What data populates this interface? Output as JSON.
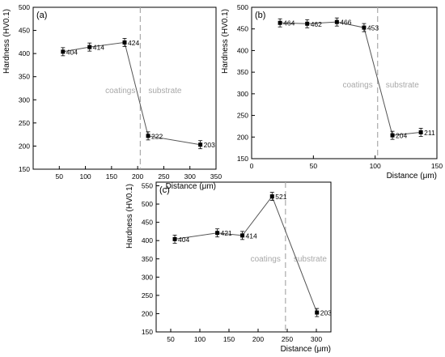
{
  "chart_data": [
    {
      "type": "line",
      "panel_label": "(a)",
      "xlabel": "Distance (μm)",
      "ylabel": "Hardness (HV0.1)",
      "xlim": [
        0,
        350
      ],
      "ylim": [
        150,
        500
      ],
      "xticks": [
        50,
        100,
        150,
        200,
        250,
        300,
        350
      ],
      "yticks": [
        150,
        200,
        250,
        300,
        350,
        400,
        450,
        500
      ],
      "boundary_x": 205,
      "region_left_label": "coatings",
      "region_right_label": "substrate",
      "series": [
        {
          "x": [
            57,
            108,
            175,
            220,
            320
          ],
          "y": [
            404,
            414,
            424,
            222,
            203
          ],
          "labels": [
            "404",
            "414",
            "424",
            "222",
            "203"
          ]
        }
      ]
    },
    {
      "type": "line",
      "panel_label": "(b)",
      "xlabel": "Distance (μm)",
      "ylabel": "Hardness (HV0.1)",
      "xlim": [
        0,
        150
      ],
      "ylim": [
        150,
        500
      ],
      "xticks": [
        0,
        50,
        100,
        150
      ],
      "yticks": [
        150,
        200,
        250,
        300,
        350,
        400,
        450,
        500
      ],
      "boundary_x": 102,
      "region_left_label": "coatings",
      "region_right_label": "substrate",
      "series": [
        {
          "x": [
            23,
            45,
            69,
            91,
            114,
            137
          ],
          "y": [
            464,
            462,
            466,
            453,
            204,
            211
          ],
          "labels": [
            "464",
            "462",
            "466",
            "453",
            "204",
            "211"
          ]
        }
      ]
    },
    {
      "type": "line",
      "panel_label": "(c)",
      "xlabel": "Distance (μm)",
      "ylabel": "Hardness (HV0.1)",
      "xlim": [
        25,
        325
      ],
      "ylim": [
        150,
        560
      ],
      "xticks": [
        50,
        100,
        150,
        200,
        250,
        300
      ],
      "yticks": [
        150,
        200,
        250,
        300,
        350,
        400,
        450,
        500,
        550
      ],
      "boundary_x": 247,
      "region_left_label": "coatings",
      "region_right_label": "substrate",
      "series": [
        {
          "x": [
            57,
            130,
            173,
            224,
            301
          ],
          "y": [
            404,
            421,
            414,
            521,
            203
          ],
          "labels": [
            "404",
            "421",
            "414",
            "521",
            "203"
          ]
        }
      ]
    }
  ]
}
